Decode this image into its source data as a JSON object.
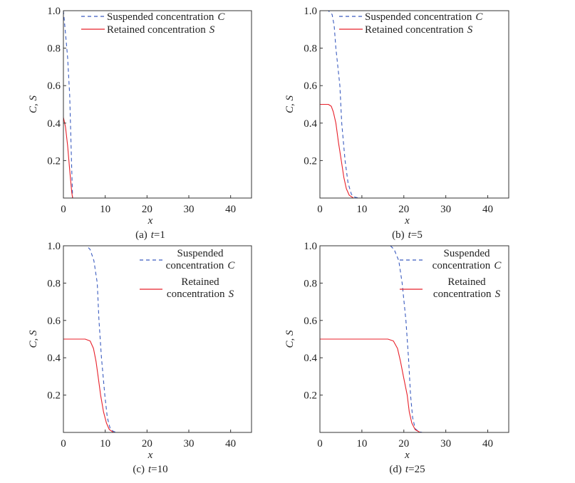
{
  "colors": {
    "C": "#3a5bbf",
    "S": "#e8202a",
    "axis": "#333333"
  },
  "chart_data": [
    {
      "type": "line",
      "caption": "(a) t=1",
      "caption_prefix": "(a)",
      "caption_var": "t",
      "caption_val": "1",
      "xlabel": "x",
      "ylabel": "C, S",
      "xlim": [
        0,
        45
      ],
      "ylim": [
        0,
        1.0
      ],
      "xticks": [
        "0",
        "10",
        "20",
        "30",
        "40"
      ],
      "yticks": [
        "0.2",
        "0.4",
        "0.6",
        "0.8",
        "1.0"
      ],
      "grid": false,
      "legend_position": "top-right",
      "legend_layout": "single-line",
      "series": [
        {
          "name": "Suspended concentration C",
          "label_text": "Suspended concentration",
          "label_var": "C",
          "style": "dashed",
          "x": [
            0,
            0.5,
            1,
            1.5,
            2,
            2.2,
            45
          ],
          "y": [
            1.0,
            0.88,
            0.75,
            0.55,
            0.15,
            0,
            0
          ]
        },
        {
          "name": "Retained concentration S",
          "label_text": "Retained concentration",
          "label_var": "S",
          "style": "solid",
          "x": [
            0,
            0.5,
            1,
            1.5,
            2,
            2.2,
            45
          ],
          "y": [
            0.43,
            0.38,
            0.28,
            0.15,
            0.03,
            0,
            0
          ]
        }
      ]
    },
    {
      "type": "line",
      "caption": "(b) t=5",
      "caption_prefix": "(b)",
      "caption_var": "t",
      "caption_val": "5",
      "xlabel": "x",
      "ylabel": "C, S",
      "xlim": [
        0,
        45
      ],
      "ylim": [
        0,
        1.0
      ],
      "xticks": [
        "0",
        "10",
        "20",
        "30",
        "40"
      ],
      "yticks": [
        "0.2",
        "0.4",
        "0.6",
        "0.8",
        "1.0"
      ],
      "grid": false,
      "legend_position": "top-right",
      "legend_layout": "single-line",
      "series": [
        {
          "name": "Suspended concentration C",
          "label_text": "Suspended concentration",
          "label_var": "C",
          "style": "dashed",
          "x": [
            0,
            2,
            2.9,
            3.4,
            3.8,
            4.75,
            5.2,
            6.0,
            6.7,
            7.5,
            8.3,
            9.2,
            45
          ],
          "y": [
            1.0,
            1.0,
            0.98,
            0.92,
            0.8,
            0.6,
            0.4,
            0.2,
            0.08,
            0.02,
            0.005,
            0,
            0
          ]
        },
        {
          "name": "Retained concentration S",
          "label_text": "Retained concentration",
          "label_var": "S",
          "style": "solid",
          "x": [
            0,
            2,
            2.7,
            3.2,
            3.8,
            4.4,
            5.1,
            5.7,
            6.3,
            7.0,
            8.0,
            45
          ],
          "y": [
            0.5,
            0.5,
            0.49,
            0.46,
            0.4,
            0.3,
            0.2,
            0.11,
            0.05,
            0.015,
            0,
            0
          ]
        }
      ]
    },
    {
      "type": "line",
      "caption": "(c) t=10",
      "caption_prefix": "(c)",
      "caption_var": "t",
      "caption_val": "10",
      "xlabel": "x",
      "ylabel": "C, S",
      "xlim": [
        0,
        45
      ],
      "ylim": [
        0,
        1.0
      ],
      "xticks": [
        "0",
        "10",
        "20",
        "30",
        "40"
      ],
      "yticks": [
        "0.2",
        "0.4",
        "0.6",
        "0.8",
        "1.0"
      ],
      "grid": false,
      "legend_position": "top-right",
      "legend_layout": "two-line",
      "series": [
        {
          "name": "Suspended concentration C",
          "label_text": "Suspended",
          "label_text2": "concentration",
          "label_var": "C",
          "style": "dashed",
          "x": [
            0,
            5.5,
            6.4,
            7.3,
            8.1,
            8.5,
            9.1,
            9.9,
            10.5,
            11.2,
            12.0,
            12.9,
            45
          ],
          "y": [
            1.0,
            1.0,
            0.98,
            0.92,
            0.8,
            0.6,
            0.4,
            0.2,
            0.08,
            0.02,
            0.005,
            0,
            0
          ]
        },
        {
          "name": "Retained concentration S",
          "label_text": "Retained",
          "label_text2": "concentration",
          "label_var": "S",
          "style": "solid",
          "x": [
            0,
            5.2,
            6.4,
            7.2,
            7.8,
            8.3,
            8.9,
            9.6,
            10.3,
            11.0,
            12.0,
            45
          ],
          "y": [
            0.5,
            0.5,
            0.49,
            0.45,
            0.38,
            0.3,
            0.2,
            0.11,
            0.05,
            0.015,
            0,
            0
          ]
        }
      ]
    },
    {
      "type": "line",
      "caption": "(d) t=25",
      "caption_prefix": "(d)",
      "caption_var": "t",
      "caption_val": "25",
      "xlabel": "x",
      "ylabel": "C, S",
      "xlim": [
        0,
        45
      ],
      "ylim": [
        0,
        1.0
      ],
      "xticks": [
        "0",
        "10",
        "20",
        "30",
        "40"
      ],
      "yticks": [
        "0.2",
        "0.4",
        "0.6",
        "0.8",
        "1.0"
      ],
      "grid": false,
      "legend_position": "top-right",
      "legend_layout": "two-line",
      "series": [
        {
          "name": "Suspended concentration C",
          "label_text": "Suspended",
          "label_text2": "concentration",
          "label_var": "C",
          "style": "dashed",
          "x": [
            0,
            16.8,
            17.7,
            18.8,
            19.6,
            20.5,
            21.1,
            21.6,
            22.1,
            22.7,
            23.5,
            24.4,
            45
          ],
          "y": [
            1.0,
            1.0,
            0.98,
            0.92,
            0.8,
            0.6,
            0.4,
            0.2,
            0.08,
            0.02,
            0.005,
            0,
            0
          ]
        },
        {
          "name": "Retained concentration S",
          "label_text": "Retained",
          "label_text2": "concentration",
          "label_var": "S",
          "style": "solid",
          "x": [
            0,
            16.2,
            17.5,
            18.5,
            19.2,
            19.9,
            20.8,
            21.3,
            21.9,
            22.7,
            23.9,
            45
          ],
          "y": [
            0.5,
            0.5,
            0.49,
            0.45,
            0.38,
            0.3,
            0.2,
            0.11,
            0.05,
            0.015,
            0,
            0
          ]
        }
      ]
    }
  ]
}
